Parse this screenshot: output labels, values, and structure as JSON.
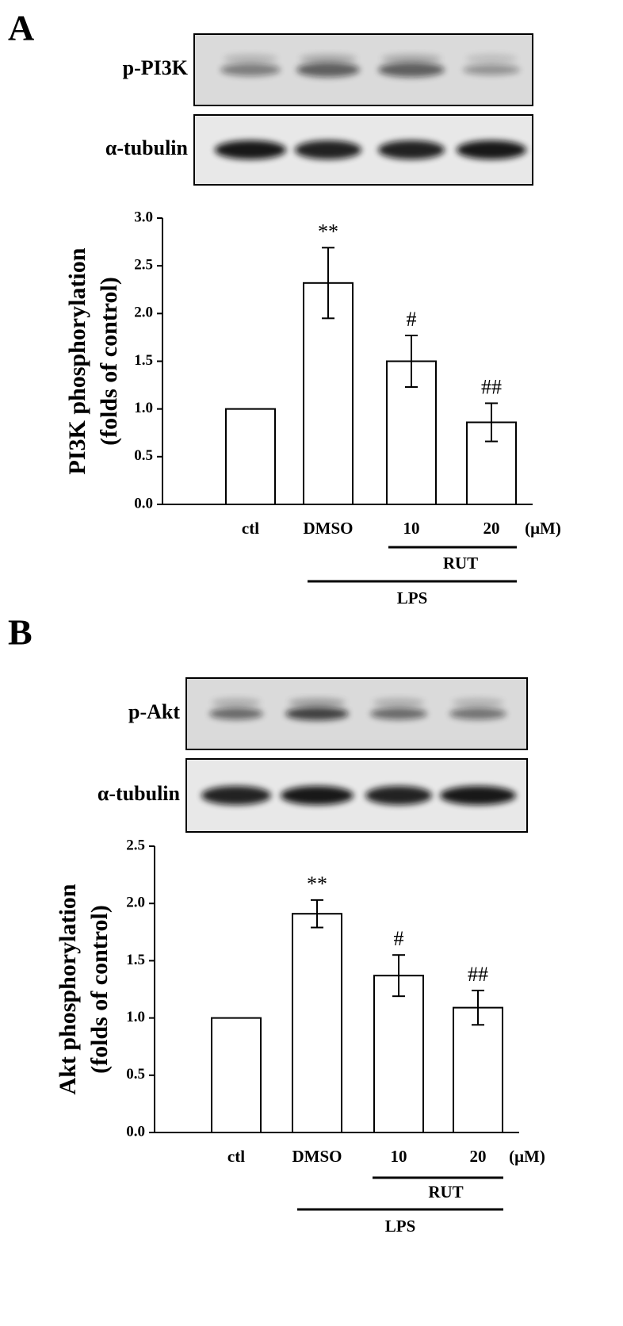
{
  "chart_data": [
    {
      "type": "bar",
      "panel": "A",
      "blot_labels": [
        "p-PI3K",
        "α-tubulin"
      ],
      "ylabel": [
        "PI3K phosphorylation",
        "(folds of control)"
      ],
      "categories": [
        "ctl",
        "DMSO",
        "10",
        "20"
      ],
      "unit": "(μM)",
      "values": [
        1.0,
        2.32,
        1.5,
        0.86
      ],
      "errors": [
        0,
        0.37,
        0.27,
        0.2
      ],
      "annotations": [
        null,
        "**",
        "#",
        "##"
      ],
      "groups": [
        "RUT",
        "LPS"
      ],
      "color": "#ffffff",
      "ylim": [
        0,
        3
      ],
      "yticks": [
        {
          "value": 0,
          "label": "0.0"
        },
        0.5,
        {
          "value": 1,
          "label": "1.0"
        },
        1.5,
        {
          "value": 2,
          "label": "2.0"
        },
        2.5,
        {
          "value": 3,
          "label": "3.0"
        }
      ]
    },
    {
      "type": "bar",
      "panel": "B",
      "blot_labels": [
        "p-Akt",
        "α-tubulin"
      ],
      "ylabel": [
        "Akt phosphorylation",
        "(folds of control)"
      ],
      "categories": [
        "ctl",
        "DMSO",
        "10",
        "20"
      ],
      "unit": "(μM)",
      "values": [
        1.0,
        1.91,
        1.37,
        1.09
      ],
      "errors": [
        0,
        0.12,
        0.18,
        0.15
      ],
      "annotations": [
        null,
        "**",
        "#",
        "##"
      ],
      "groups": [
        "RUT",
        "LPS"
      ],
      "color": "#ffffff",
      "ylim": [
        0,
        2.5
      ],
      "yticks": [
        {
          "value": 0,
          "label": "0.0"
        },
        0.5,
        {
          "value": 1,
          "label": "1.0"
        },
        1.5,
        {
          "value": 2,
          "label": "2.0"
        },
        2.5
      ]
    }
  ]
}
